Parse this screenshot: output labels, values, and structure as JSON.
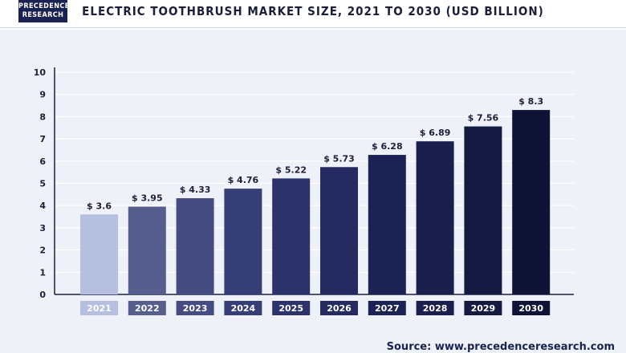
{
  "header": {
    "logo_line1": "PRECEDENCE",
    "logo_line2": "RESEARCH",
    "title": "ELECTRIC TOOTHBRUSH MARKET SIZE, 2021 TO 2030 (USD BILLION)"
  },
  "source": "Source: www.precedenceresearch.com",
  "chart_data": {
    "type": "bar",
    "title": "ELECTRIC TOOTHBRUSH MARKET SIZE, 2021 TO 2030 (USD BILLION)",
    "xlabel": "",
    "ylabel": "",
    "categories": [
      "2021",
      "2022",
      "2023",
      "2024",
      "2025",
      "2026",
      "2027",
      "2028",
      "2029",
      "2030"
    ],
    "values": [
      3.6,
      3.95,
      4.33,
      4.76,
      5.22,
      5.73,
      6.28,
      6.89,
      7.56,
      8.3
    ],
    "data_labels": [
      "$ 3.6",
      "$ 3.95",
      "$ 4.33",
      "$ 4.76",
      "$ 5.22",
      "$ 5.73",
      "$ 6.28",
      "$ 6.89",
      "$ 7.56",
      "$ 8.3"
    ],
    "ylim": [
      0,
      10
    ],
    "yticks": [
      0,
      1,
      2,
      3,
      4,
      5,
      6,
      7,
      8,
      9,
      10
    ],
    "grid": true,
    "colors": [
      "#b6bfe0",
      "#555e8c",
      "#454c82",
      "#363e77",
      "#2c336c",
      "#252b60",
      "#1c2254",
      "#1a1f4d",
      "#151a42",
      "#0f1336"
    ],
    "axis_color": "#1b1f3a",
    "grid_color": "#ffffff"
  }
}
